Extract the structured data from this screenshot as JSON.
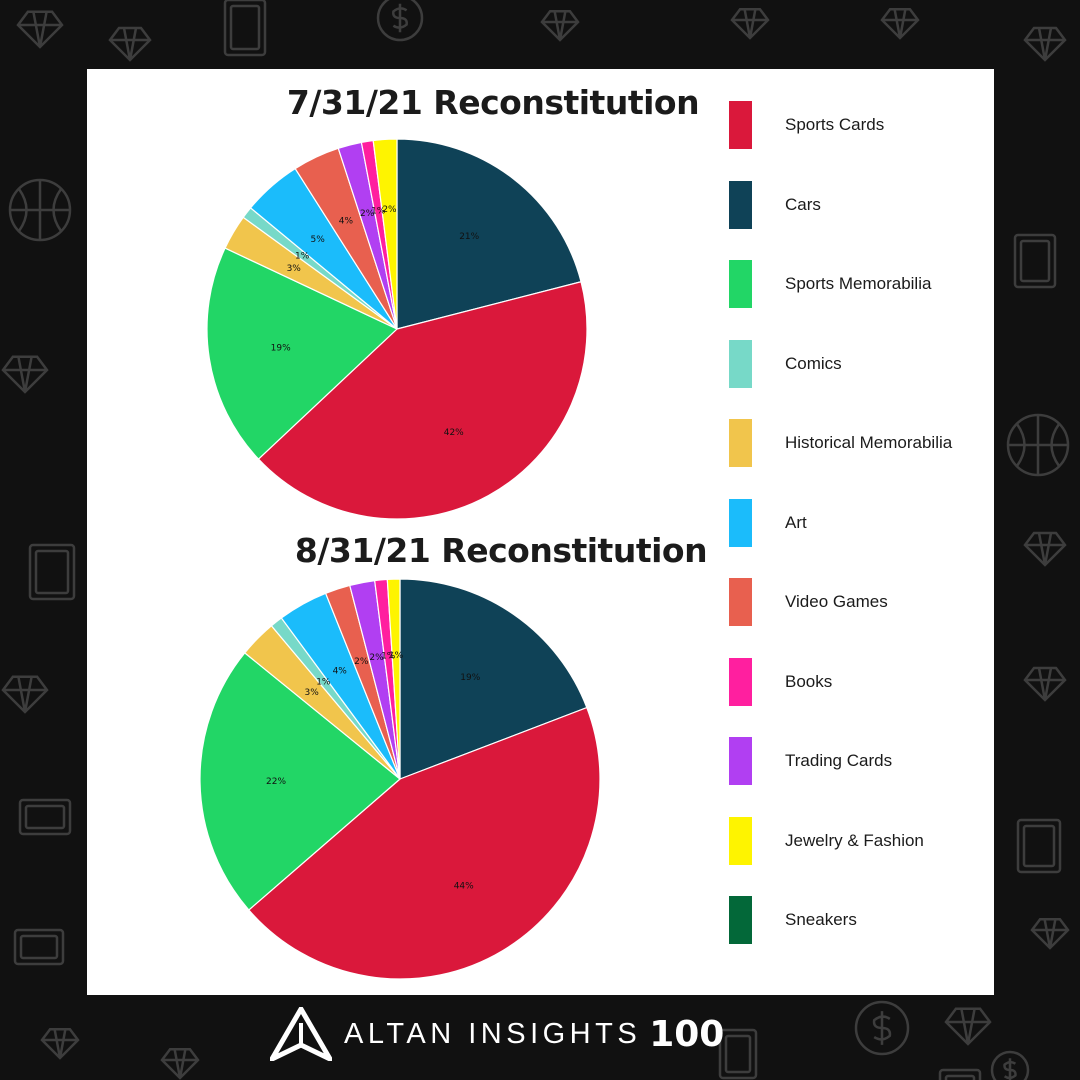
{
  "chart_data": [
    {
      "type": "pie",
      "title": "7/31/21 Reconstitution",
      "categories": [
        "Cars",
        "Sports Cards",
        "Sports Memorabilia",
        "Historical Memorabilia",
        "Comics",
        "Art",
        "Video Games",
        "Trading Cards",
        "Books",
        "Jewelry & Fashion"
      ],
      "values": [
        21,
        42,
        19,
        3,
        1,
        5,
        4,
        2,
        1,
        2
      ],
      "labels": [
        "21%",
        "42%",
        "19%",
        "3%",
        "1%",
        "5%",
        "4%",
        "2%",
        "1%",
        "2%"
      ],
      "colors": [
        "#0f4257",
        "#da183b",
        "#22d666",
        "#f1c54c",
        "#77d9c8",
        "#1bbcfb",
        "#e8604f",
        "#b13ff2",
        "#ff1f9f",
        "#fef400"
      ]
    },
    {
      "type": "pie",
      "title": "8/31/21 Reconstitution",
      "categories": [
        "Cars",
        "Sports Cards",
        "Sports Memorabilia",
        "Historical Memorabilia",
        "Comics",
        "Art",
        "Video Games",
        "Trading Cards",
        "Books",
        "Jewelry & Fashion"
      ],
      "values": [
        19,
        44,
        22,
        3,
        1,
        4,
        2,
        2,
        1,
        1
      ],
      "labels": [
        "19%",
        "44%",
        "22%",
        "3%",
        "1%",
        "4%",
        "2%",
        "2%",
        "1%",
        "1%"
      ],
      "colors": [
        "#0f4257",
        "#da183b",
        "#22d666",
        "#f1c54c",
        "#77d9c8",
        "#1bbcfb",
        "#e8604f",
        "#b13ff2",
        "#ff1f9f",
        "#fef400"
      ]
    }
  ],
  "legend": [
    {
      "label": "Sports Cards",
      "color": "#da183b"
    },
    {
      "label": "Cars",
      "color": "#0f4257"
    },
    {
      "label": "Sports Memorabilia",
      "color": "#22d666"
    },
    {
      "label": "Comics",
      "color": "#77d9c8"
    },
    {
      "label": "Historical Memorabilia",
      "color": "#f1c54c"
    },
    {
      "label": "Art",
      "color": "#1bbcfb"
    },
    {
      "label": "Video Games",
      "color": "#e8604f"
    },
    {
      "label": "Books",
      "color": "#ff1f9f"
    },
    {
      "label": "Trading Cards",
      "color": "#b13ff2"
    },
    {
      "label": "Jewelry & Fashion",
      "color": "#fef400"
    },
    {
      "label": "Sneakers",
      "color": "#036839"
    }
  ],
  "brand": {
    "name": "ALTAN INSIGHTS",
    "number": "100",
    "logo_icon": "altan-mountain-logo"
  },
  "background": {
    "color": "#111111",
    "pattern_icons": [
      "diamond-icon",
      "dollar-coin-icon",
      "basketball-icon",
      "sneaker-icon",
      "car-icon",
      "book-icon",
      "trading-card-icon"
    ]
  }
}
